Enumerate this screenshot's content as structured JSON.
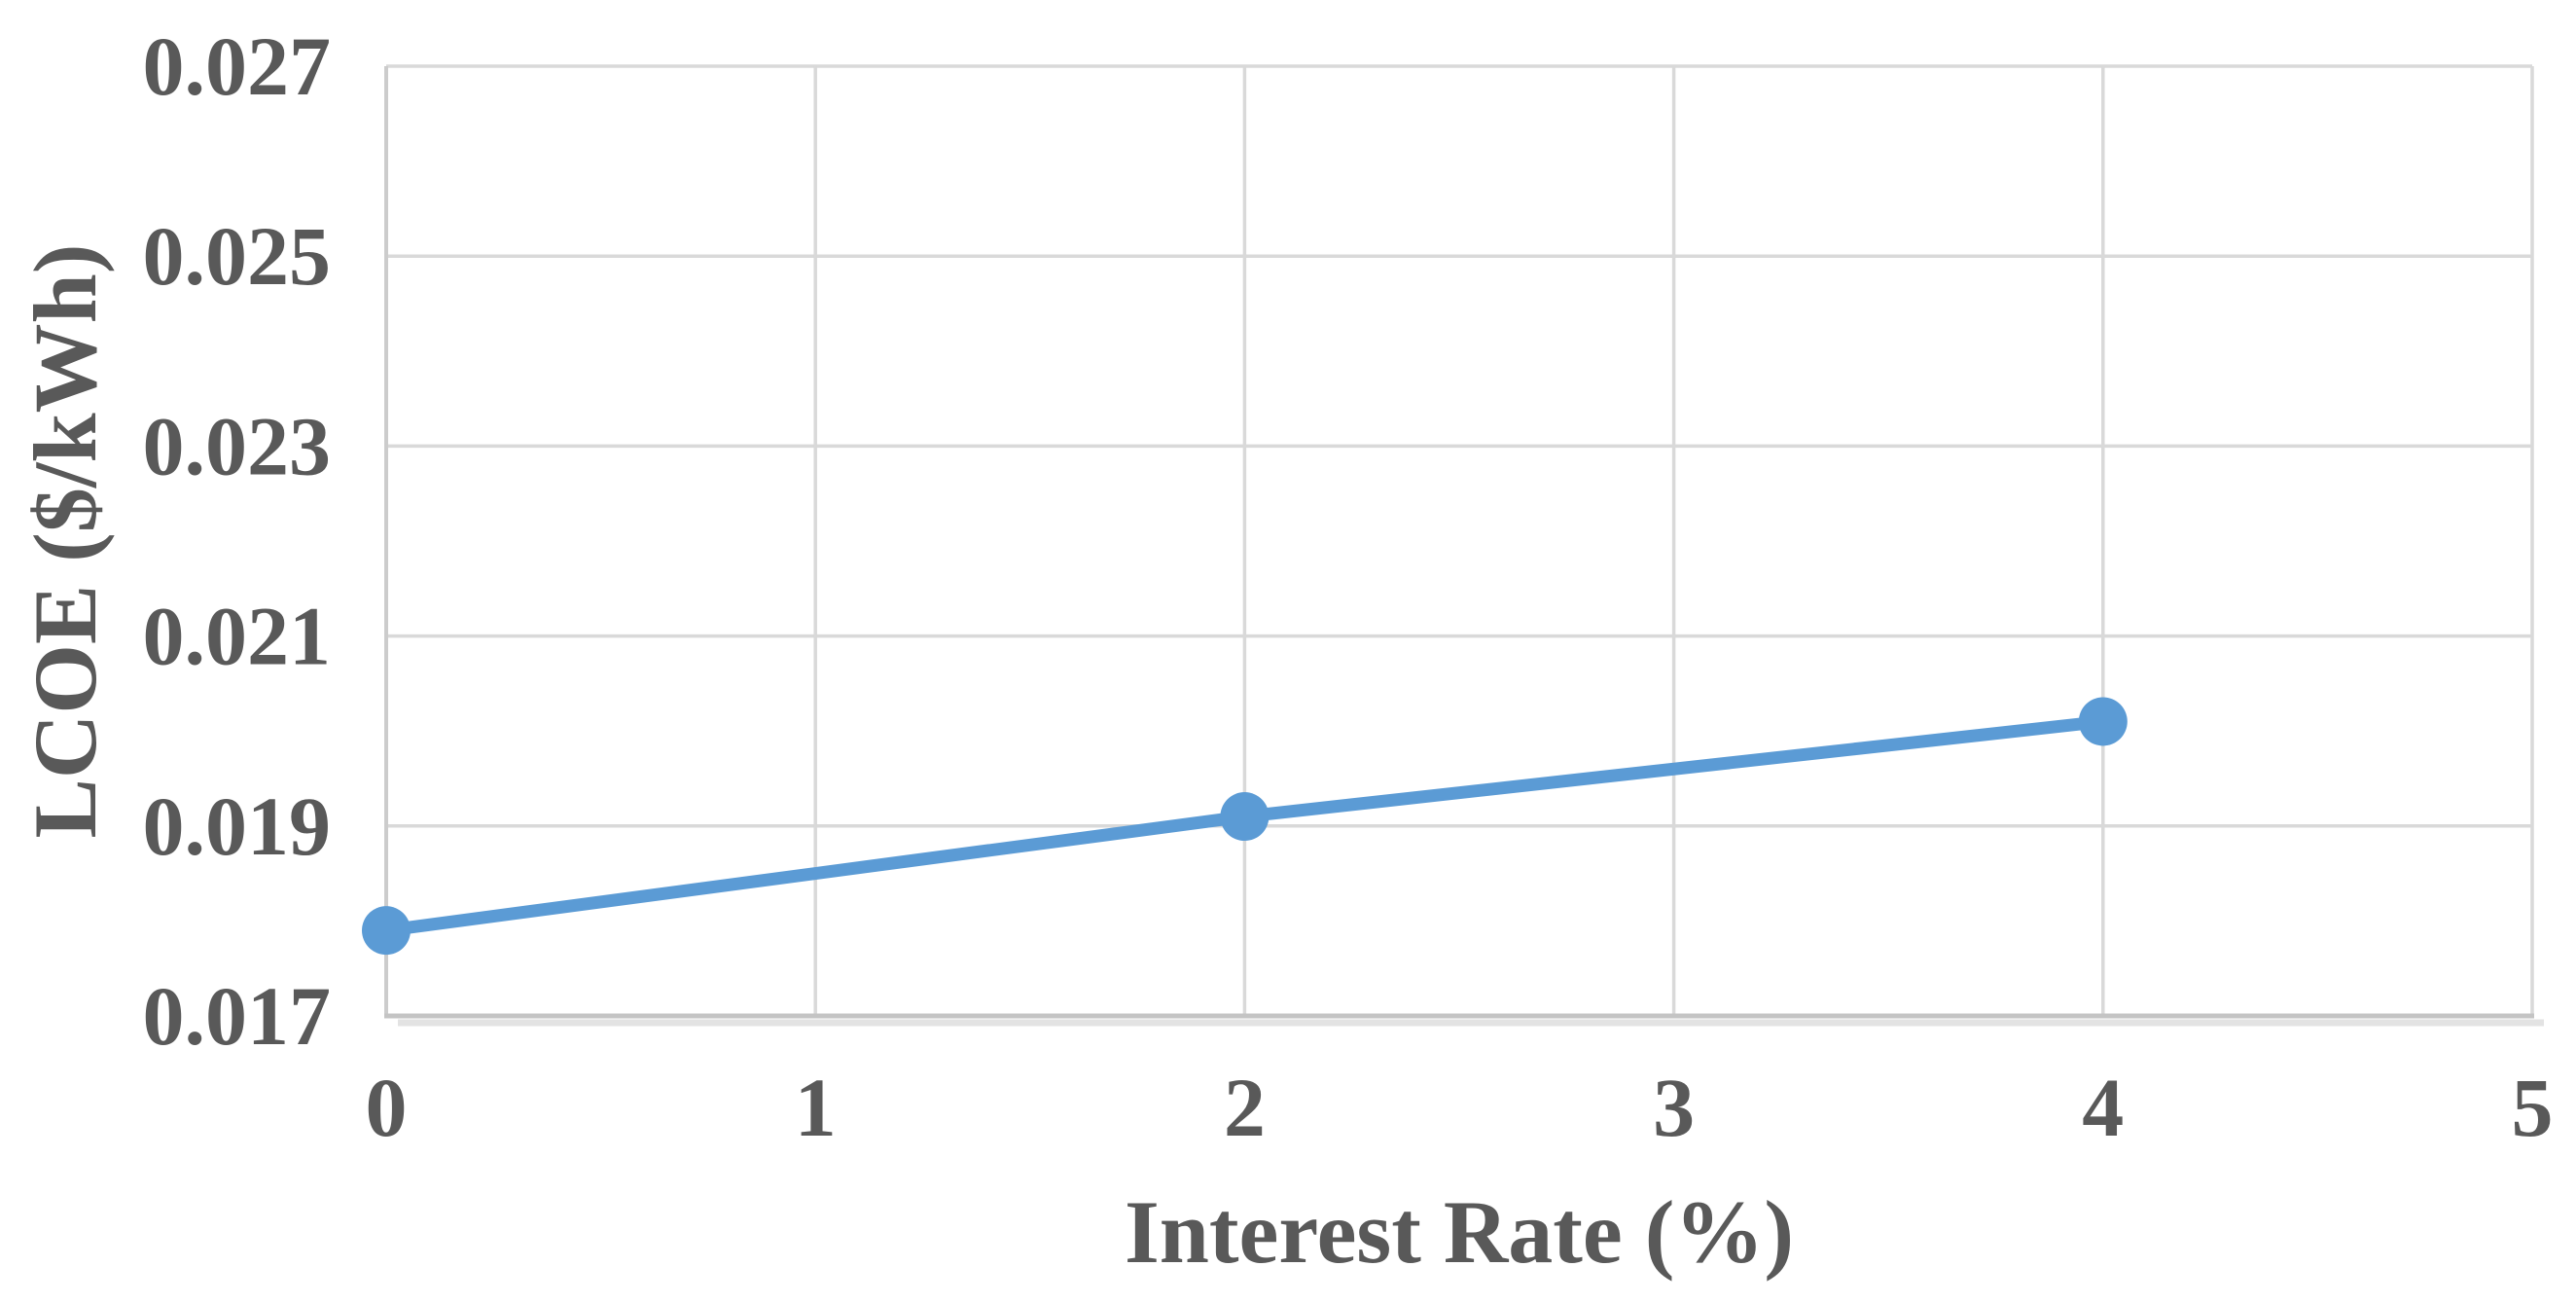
{
  "chart_data": {
    "type": "line",
    "title": "",
    "xlabel": "Interest Rate (%)",
    "ylabel": "LCOE ($/kWh)",
    "x": [
      0,
      2,
      4
    ],
    "series": [
      {
        "name": "LCOE",
        "values": [
          0.0179,
          0.0191,
          0.0201
        ]
      }
    ],
    "xlim": [
      0,
      5
    ],
    "ylim": [
      0.017,
      0.027
    ],
    "xticks": {
      "values": [
        0,
        1,
        2,
        3,
        4,
        5
      ],
      "labels": [
        "0",
        "1",
        "2",
        "3",
        "4",
        "5"
      ]
    },
    "yticks": {
      "values": [
        0.017,
        0.019,
        0.021,
        0.023,
        0.025,
        0.027
      ],
      "labels": [
        "0.017",
        "0.019",
        "0.021",
        "0.023",
        "0.025",
        "0.027"
      ]
    },
    "grid": true,
    "legend": "none",
    "marker_style": "circle",
    "colors": {
      "line": "#5B9BD5",
      "marker": "#5B9BD5",
      "gridline": "#D9D9D9",
      "axis_line": "#C4C4C4",
      "axis_shadow": "#DFDFDF",
      "text": "#595959",
      "background": "#FFFFFF"
    }
  }
}
